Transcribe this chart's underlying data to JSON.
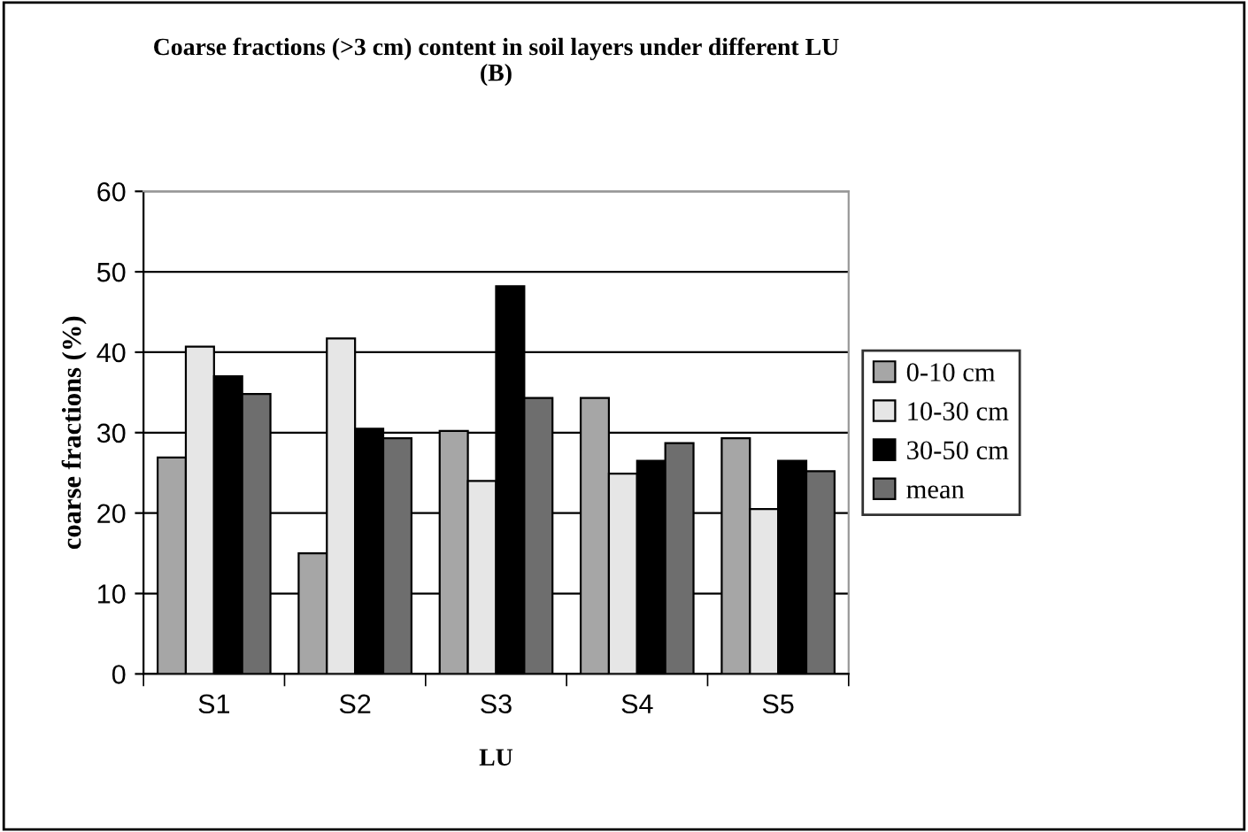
{
  "chart_data": {
    "type": "bar",
    "title": "Coarse fractions (>3 cm) content in soil layers under different LU\n(B)",
    "xlabel": "LU",
    "ylabel": "coarse fractions (%)",
    "categories": [
      "S1",
      "S2",
      "S3",
      "S4",
      "S5"
    ],
    "series": [
      {
        "name": "0-10 cm",
        "color": "#a6a6a6",
        "values": [
          26.9,
          15.0,
          30.2,
          34.3,
          29.3
        ]
      },
      {
        "name": "10-30 cm",
        "color": "#e6e6e6",
        "values": [
          40.7,
          41.7,
          24.0,
          24.9,
          20.5
        ]
      },
      {
        "name": "30-50 cm",
        "color": "#000000",
        "values": [
          37.0,
          30.5,
          48.2,
          26.5,
          26.5
        ]
      },
      {
        "name": "mean",
        "color": "#6e6e6e",
        "values": [
          34.8,
          29.3,
          34.3,
          28.7,
          25.2
        ]
      }
    ],
    "ylim": [
      0,
      60
    ],
    "yticks": [
      0,
      10,
      20,
      30,
      40,
      50,
      60
    ],
    "grid": "y",
    "legend": "right"
  }
}
